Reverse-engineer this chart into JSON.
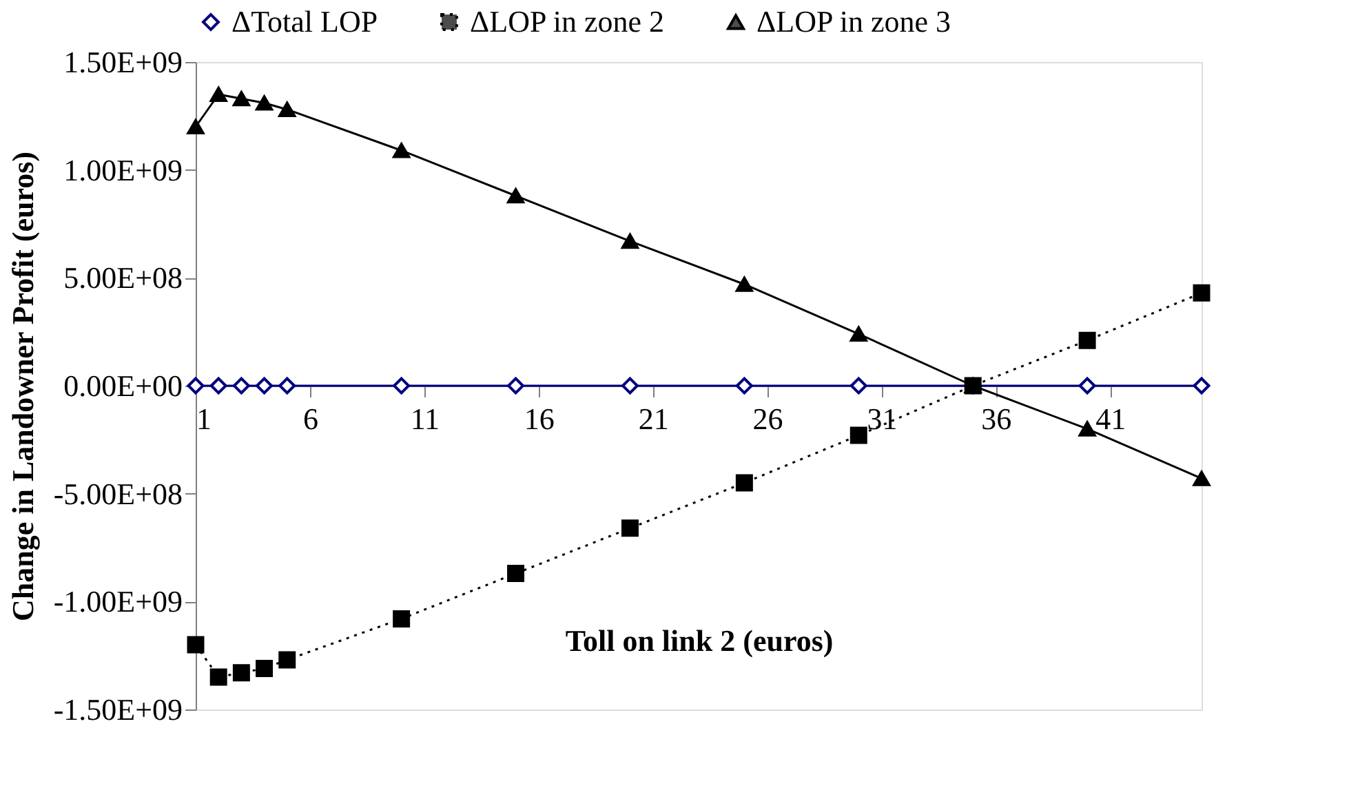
{
  "chart_data": {
    "type": "line",
    "xlabel": "Toll on link 2 (euros)",
    "ylabel": "Change in Landowner Profit (euros)",
    "x": [
      1,
      2,
      3,
      4,
      5,
      10,
      15,
      20,
      25,
      30,
      35,
      40,
      45
    ],
    "xlim": [
      1,
      45
    ],
    "xticks": [
      1,
      6,
      11,
      16,
      21,
      26,
      31,
      36,
      41
    ],
    "ylim": [
      -1500000000,
      1500000000
    ],
    "yticks": [
      {
        "value": -1500000000,
        "label": "-1.50E+09"
      },
      {
        "value": -1000000000,
        "label": "-1.00E+09"
      },
      {
        "value": -500000000,
        "label": "-5.00E+08"
      },
      {
        "value": 0,
        "label": "0.00E+00"
      },
      {
        "value": 500000000,
        "label": "5.00E+08"
      },
      {
        "value": 1000000000,
        "label": "1.00E+09"
      },
      {
        "value": 1500000000,
        "label": "1.50E+09"
      }
    ],
    "grid": false,
    "legend": "top",
    "series": [
      {
        "name": "ΔTotal LOP",
        "color": "#000080",
        "marker": "diamond",
        "line_style": "solid",
        "values": [
          0,
          0,
          0,
          0,
          0,
          0,
          0,
          0,
          0,
          0,
          0,
          0,
          0
        ]
      },
      {
        "name": "ΔLOP in zone 2",
        "color": "#000000",
        "marker": "square",
        "line_style": "dotted",
        "values": [
          -1200000000,
          -1350000000,
          -1330000000,
          -1310000000,
          -1270000000,
          -1080000000,
          -870000000,
          -660000000,
          -450000000,
          -230000000,
          0,
          210000000,
          430000000
        ]
      },
      {
        "name": "ΔLOP in zone  3",
        "color": "#000000",
        "marker": "triangle",
        "line_style": "solid",
        "values": [
          1200000000,
          1350000000,
          1330000000,
          1310000000,
          1280000000,
          1090000000,
          880000000,
          670000000,
          470000000,
          240000000,
          0,
          -200000000,
          -430000000
        ]
      }
    ]
  }
}
